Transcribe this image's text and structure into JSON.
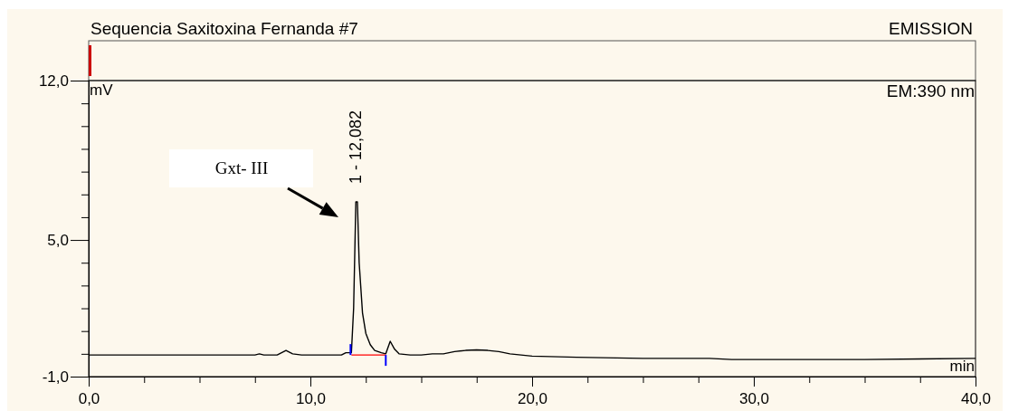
{
  "chart_data": {
    "type": "line",
    "title": "Sequencia Saxitoxina Fernanda #7",
    "xlabel": "min",
    "ylabel": "mV",
    "annotations": [
      "EMISSION",
      "EM:390 nm",
      "Gxt- III",
      {
        "text": "1 - 12,082",
        "x": 12.082,
        "y": 6.67
      }
    ],
    "xlim": [
      0,
      40
    ],
    "ylim": [
      -1,
      12
    ],
    "xticks": [
      {
        "value": 0,
        "label": "0,0"
      },
      {
        "value": 2.5,
        "label": null
      },
      {
        "value": 5,
        "label": null
      },
      {
        "value": 7.5,
        "label": null
      },
      {
        "value": 10,
        "label": "10,0"
      },
      {
        "value": 12.5,
        "label": null
      },
      {
        "value": 15,
        "label": null
      },
      {
        "value": 17.5,
        "label": null
      },
      {
        "value": 20,
        "label": "20,0"
      },
      {
        "value": 22.5,
        "label": null
      },
      {
        "value": 25,
        "label": null
      },
      {
        "value": 27.5,
        "label": null
      },
      {
        "value": 30,
        "label": "30,0"
      },
      {
        "value": 32.5,
        "label": null
      },
      {
        "value": 35,
        "label": null
      },
      {
        "value": 37.5,
        "label": null
      },
      {
        "value": 40,
        "label": "40,0"
      }
    ],
    "yticks": [
      {
        "value": -1,
        "label": "-1,0"
      },
      {
        "value": 0,
        "label": null
      },
      {
        "value": 1,
        "label": null
      },
      {
        "value": 2,
        "label": null
      },
      {
        "value": 3,
        "label": null
      },
      {
        "value": 4,
        "label": null
      },
      {
        "value": 5,
        "label": "5,0"
      },
      {
        "value": 6,
        "label": null
      },
      {
        "value": 7,
        "label": null
      },
      {
        "value": 8,
        "label": null
      },
      {
        "value": 9,
        "label": null
      },
      {
        "value": 10,
        "label": null
      },
      {
        "value": 11,
        "label": null
      },
      {
        "value": 12,
        "label": "12,0"
      }
    ],
    "grid": false,
    "marker": "none",
    "line_style": "solid",
    "series": [
      {
        "color": "#000000",
        "x": [
          0,
          2,
          4,
          6,
          7.5,
          7.7,
          7.9,
          8.5,
          8.9,
          9.2,
          9.6,
          10.5,
          11.4,
          11.6,
          11.85,
          11.95,
          12.05,
          12.12,
          12.2,
          12.35,
          12.5,
          12.7,
          12.9,
          13.2,
          13.4,
          13.6,
          13.8,
          14,
          14.5,
          15,
          15.5,
          16,
          16.5,
          17,
          17.5,
          18,
          18.5,
          19,
          20,
          22,
          25,
          28,
          29,
          30,
          35,
          40
        ],
        "values": [
          -0.05,
          -0.05,
          -0.05,
          -0.05,
          -0.05,
          0,
          -0.05,
          -0.05,
          0.15,
          0,
          -0.05,
          -0.05,
          -0.05,
          0.05,
          0.05,
          2,
          6.67,
          6.67,
          4,
          1.8,
          0.9,
          0.4,
          0.15,
          0.05,
          0,
          0.55,
          0.2,
          0,
          -0.05,
          -0.05,
          0,
          0,
          0.1,
          0.15,
          0.17,
          0.15,
          0.1,
          0,
          -0.1,
          -0.15,
          -0.2,
          -0.2,
          -0.25,
          -0.25,
          -0.25,
          -0.2
        ]
      },
      {
        "color": "#ff0000",
        "x": [
          11.85,
          13.4
        ],
        "values": [
          -0.05,
          -0.05
        ]
      }
    ]
  }
}
